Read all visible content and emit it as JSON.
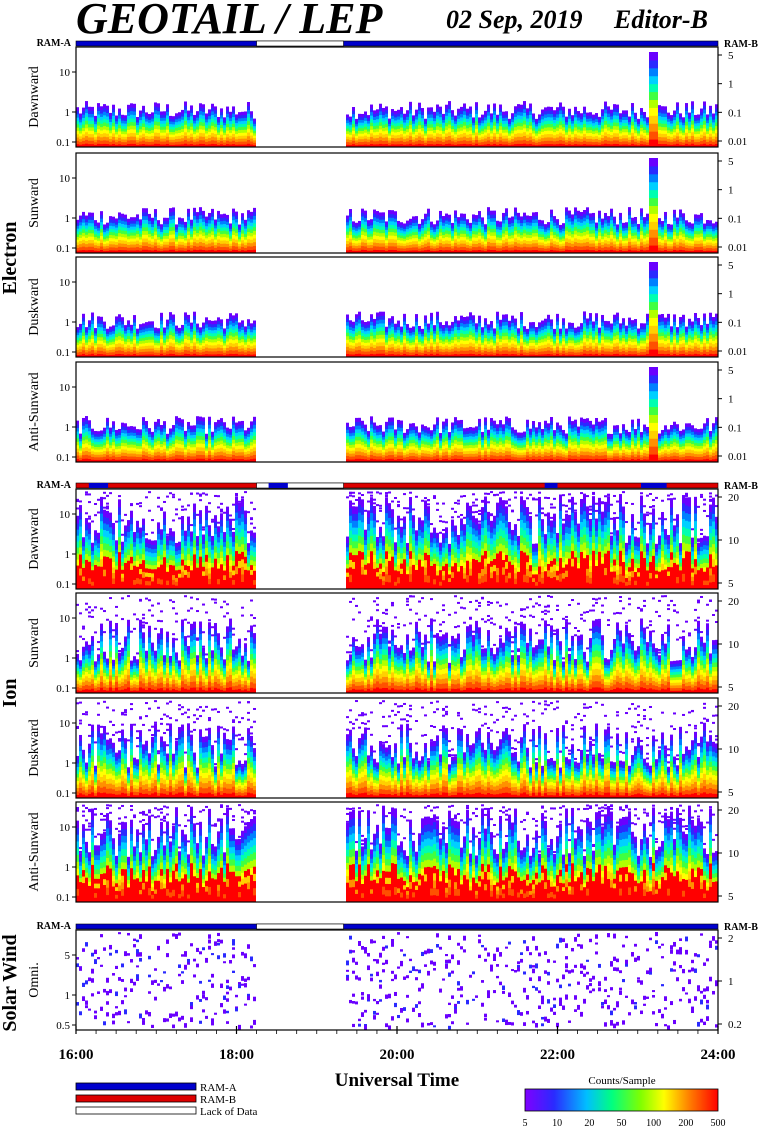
{
  "header": {
    "title": "GEOTAIL / LEP",
    "date": "02 Sep, 2019",
    "editor": "Editor-B"
  },
  "chart_data": {
    "type": "heatmap",
    "x_axis": {
      "label": "Universal Time",
      "range": [
        "16:00",
        "24:00"
      ],
      "ticks": [
        "16:00",
        "18:00",
        "20:00",
        "22:00",
        "24:00"
      ]
    },
    "data_gap": {
      "start": "18:15",
      "end": "19:20"
    },
    "ram_labels": {
      "left": "RAM-A",
      "right": "RAM-B"
    },
    "groups": [
      {
        "name": "Electron",
        "panels": [
          "Dawnward",
          "Sunward",
          "Duskward",
          "Anti-Sunward"
        ],
        "left_ticks": [
          "10",
          "1",
          "0.1"
        ],
        "right_ticks": [
          "5",
          "1",
          "0.1",
          "0.01"
        ],
        "mode": "RAM-A"
      },
      {
        "name": "Ion",
        "panels": [
          "Dawnward",
          "Sunward",
          "Duskward",
          "Anti-Sunward"
        ],
        "left_ticks": [
          "10",
          "1",
          "0.1"
        ],
        "right_ticks": [
          "20",
          "10",
          "5"
        ],
        "mode": "RAM-B"
      },
      {
        "name": "Solar Wind",
        "panels": [
          "Omni."
        ],
        "left_ticks": [
          "5",
          "1",
          "0.5"
        ],
        "right_ticks": [
          "2",
          "1",
          "0.2"
        ],
        "mode": "RAM-A"
      }
    ],
    "legend": {
      "entries": [
        {
          "label": "RAM-A",
          "color": "#0000cc"
        },
        {
          "label": "RAM-B",
          "color": "#dd0000"
        },
        {
          "label": "Lack of Data",
          "color": "#ffffff"
        }
      ]
    },
    "colorbar": {
      "title": "Counts/Sample",
      "ticks": [
        "5",
        "10",
        "20",
        "50",
        "100",
        "200",
        "500"
      ]
    }
  },
  "colors": {
    "ram_a": "#0000cc",
    "ram_b": "#dd0000"
  }
}
